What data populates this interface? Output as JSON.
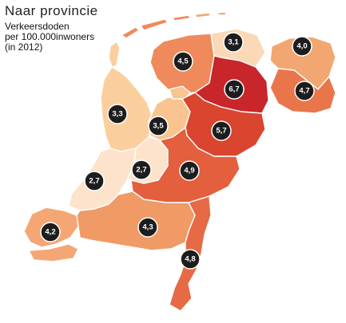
{
  "title": "Naar provincie",
  "subtitle_lines": [
    "Verkeersdoden",
    "per 100.000inwoners",
    "(in 2012)"
  ],
  "provinces": [
    {
      "key": "groningen",
      "value": "4,0",
      "color": "#f2a671"
    },
    {
      "key": "friesland",
      "value": "4,5",
      "color": "#ee8a5c"
    },
    {
      "key": "noordoostpolder",
      "value": "3,1",
      "color": "#fbd9b6"
    },
    {
      "key": "drenthe",
      "value": "6,7",
      "color": "#c8262a"
    },
    {
      "key": "overijssel",
      "value": "5,7",
      "color": "#d9452f"
    },
    {
      "key": "noord-holland",
      "value": "3,3",
      "color": "#fbcf9d"
    },
    {
      "key": "flevoland",
      "value": "3,5",
      "color": "#f9c48f"
    },
    {
      "key": "zuid-holland",
      "value": "2,7",
      "color": "#fde3cb"
    },
    {
      "key": "utrecht",
      "value": "2,7",
      "color": "#fde3cb"
    },
    {
      "key": "gelderland",
      "value": "4,9",
      "color": "#e35f3d"
    },
    {
      "key": "zeeland",
      "value": "4,2",
      "color": "#f4a774"
    },
    {
      "key": "noord-brabant",
      "value": "4,3",
      "color": "#f09a66"
    },
    {
      "key": "limburg",
      "value": "4,8",
      "color": "#e56a45"
    },
    {
      "key": "oost-groningen",
      "value": "4,7",
      "color": "#e9764b"
    }
  ]
}
